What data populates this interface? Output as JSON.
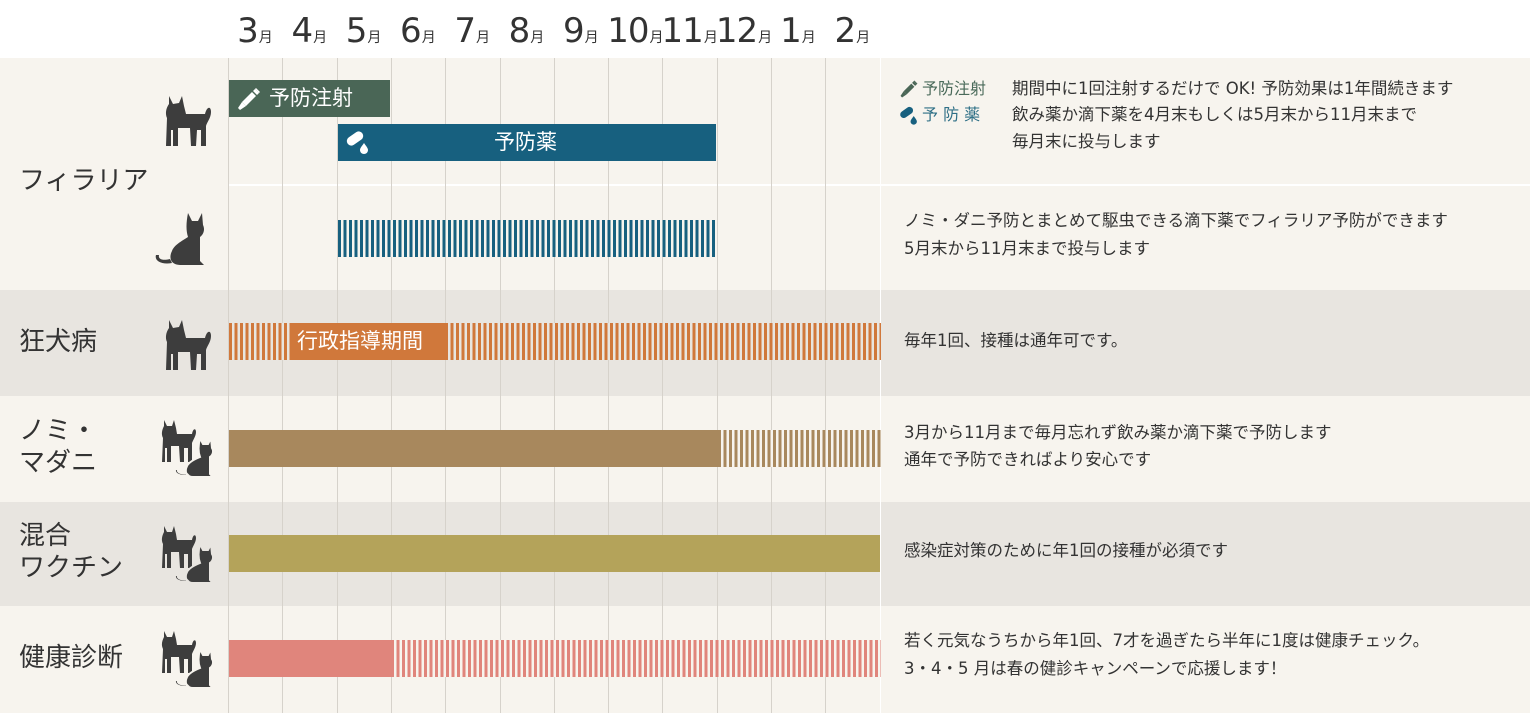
{
  "months": [
    {
      "num": "3",
      "unit": "月"
    },
    {
      "num": "4",
      "unit": "月"
    },
    {
      "num": "5",
      "unit": "月"
    },
    {
      "num": "6",
      "unit": "月"
    },
    {
      "num": "7",
      "unit": "月"
    },
    {
      "num": "8",
      "unit": "月"
    },
    {
      "num": "9",
      "unit": "月"
    },
    {
      "num": "10",
      "unit": "月"
    },
    {
      "num": "11",
      "unit": "月"
    },
    {
      "num": "12",
      "unit": "月"
    },
    {
      "num": "1",
      "unit": "月"
    },
    {
      "num": "2",
      "unit": "月"
    }
  ],
  "colors": {
    "injection": "#4a6656",
    "medicine": "#17607f",
    "rabies": "#d0783b",
    "flea": "#a8885d",
    "vaccine": "#b4a35a",
    "checkup": "#e0857c",
    "row_light": "#f7f4ee",
    "row_dark": "#e8e5e0",
    "silhouette": "#3d3d3d"
  },
  "rows": {
    "filaria": {
      "category": "フィラリア",
      "dog_icon": "dog-icon",
      "cat_icon": "cat-icon",
      "injection_label": "予防注射",
      "medicine_label": "予防薬",
      "legend_injection": "予防注射",
      "legend_medicine": "予 防 薬",
      "desc_injection": "期間中に1回注射するだけで OK! 予防効果は1年間続きます",
      "desc_medicine_1": "飲み薬か滴下薬を4月末もしくは5月末から11月末まで",
      "desc_medicine_2": "毎月末に投与します",
      "desc_cat_1": "ノミ・ダニ予防とまとめて駆虫できる滴下薬でフィラリア予防ができます",
      "desc_cat_2": "5月末から11月末まで投与します"
    },
    "rabies": {
      "category": "狂犬病",
      "bar_label": "行政指導期間",
      "desc_1": "毎年1回、接種は通年可です。"
    },
    "flea": {
      "category_1": "ノミ・",
      "category_2": "マダニ",
      "desc_1": "3月から11月まで毎月忘れず飲み薬か滴下薬で予防します",
      "desc_2": "通年で予防できればより安心です"
    },
    "vaccine": {
      "category_1": "混合",
      "category_2": "ワクチン",
      "desc_1": "感染症対策のために年1回の接種が必須です"
    },
    "checkup": {
      "category": "健康診断",
      "desc_1": "若く元気なうちから年1回、7才を過ぎたら半年に1度は健康チェック。",
      "desc_2": "3・4・5 月は春の健診キャンペーンで応援します！"
    }
  }
}
